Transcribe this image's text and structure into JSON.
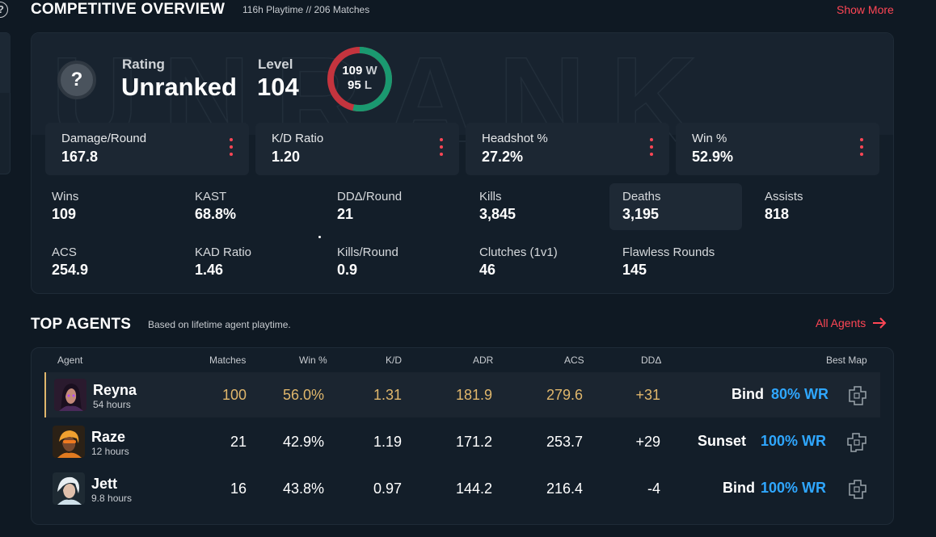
{
  "overview": {
    "title": "COMPETITIVE OVERVIEW",
    "meta": "116h Playtime  // 206 Matches",
    "show_more": "Show More",
    "rating_label": "Rating",
    "rating_value": "Unranked",
    "rank_icon_glyph": "?",
    "level_label": "Level",
    "level_value": "104",
    "wins_count": "109",
    "losses_count": "95",
    "wins_letter": "W",
    "losses_letter": "L",
    "win_fraction": 0.534,
    "colors": {
      "win": "#1a9970",
      "loss": "#c4343e",
      "accent": "#ff4655"
    },
    "main_stats": [
      {
        "label": "Damage/Round",
        "value": "167.8"
      },
      {
        "label": "K/D Ratio",
        "value": "1.20"
      },
      {
        "label": "Headshot %",
        "value": "27.2%"
      },
      {
        "label": "Win %",
        "value": "52.9%"
      }
    ],
    "stats": [
      {
        "label": "Wins",
        "value": "109"
      },
      {
        "label": "KAST",
        "value": "68.8%"
      },
      {
        "label": "DDΔ/Round",
        "value": "21"
      },
      {
        "label": "Kills",
        "value": "3,845"
      },
      {
        "label": "Deaths",
        "value": "3,195"
      },
      {
        "label": "Assists",
        "value": "818"
      },
      {
        "label": "ACS",
        "value": "254.9"
      },
      {
        "label": "KAD Ratio",
        "value": "1.46"
      },
      {
        "label": "Kills/Round",
        "value": "0.9"
      },
      {
        "label": "Clutches (1v1)",
        "value": "46"
      },
      {
        "label": "Flawless Rounds",
        "value": "145"
      }
    ]
  },
  "agents": {
    "title": "TOP AGENTS",
    "subtitle": "Based on lifetime agent playtime.",
    "all_agents": "All Agents",
    "columns": [
      "Agent",
      "Matches",
      "Win %",
      "K/D",
      "ADR",
      "ACS",
      "DDΔ",
      "Best Map"
    ],
    "rows": [
      {
        "name": "Reyna",
        "hours": "54 hours",
        "matches": "100",
        "win": "56.0%",
        "kd": "1.31",
        "adr": "181.9",
        "acs": "279.6",
        "dd": "+31",
        "map": "Bind",
        "map_wr": "80% WR"
      },
      {
        "name": "Raze",
        "hours": "12 hours",
        "matches": "21",
        "win": "42.9%",
        "kd": "1.19",
        "adr": "171.2",
        "acs": "253.7",
        "dd": "+29",
        "map": "Sunset",
        "map_wr": "100% WR"
      },
      {
        "name": "Jett",
        "hours": "9.8 hours",
        "matches": "16",
        "win": "43.8%",
        "kd": "0.97",
        "adr": "144.2",
        "acs": "216.4",
        "dd": "-4",
        "map": "Bind",
        "map_wr": "100% WR"
      }
    ]
  }
}
